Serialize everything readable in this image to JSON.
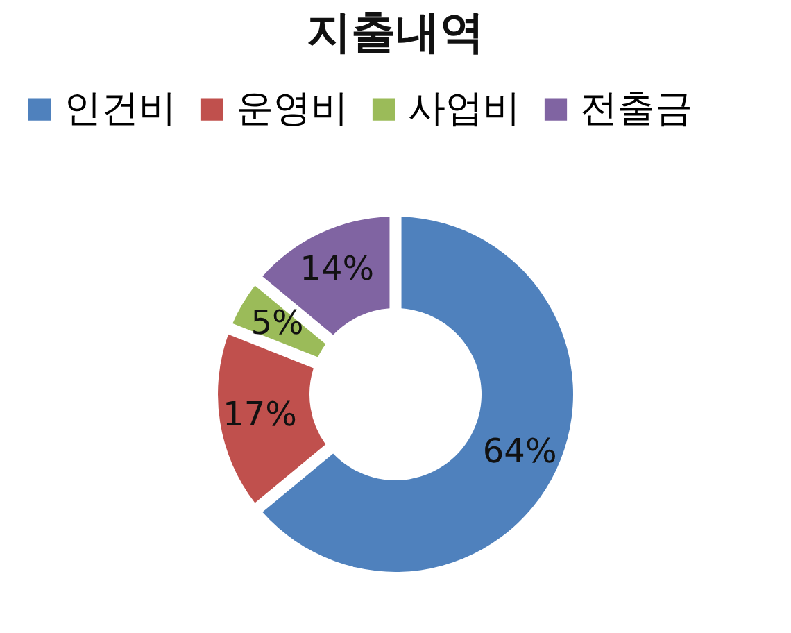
{
  "chart_data": {
    "type": "donut",
    "title": "지출내역",
    "categories": [
      "인건비",
      "운영비",
      "사업비",
      "전출금"
    ],
    "values": [
      64,
      17,
      5,
      14
    ],
    "colors": [
      "#4f81bd",
      "#c0504d",
      "#9bbb59",
      "#8064a2"
    ],
    "value_labels": [
      "64%",
      "17%",
      "5%",
      "14%"
    ],
    "legend": "top"
  }
}
